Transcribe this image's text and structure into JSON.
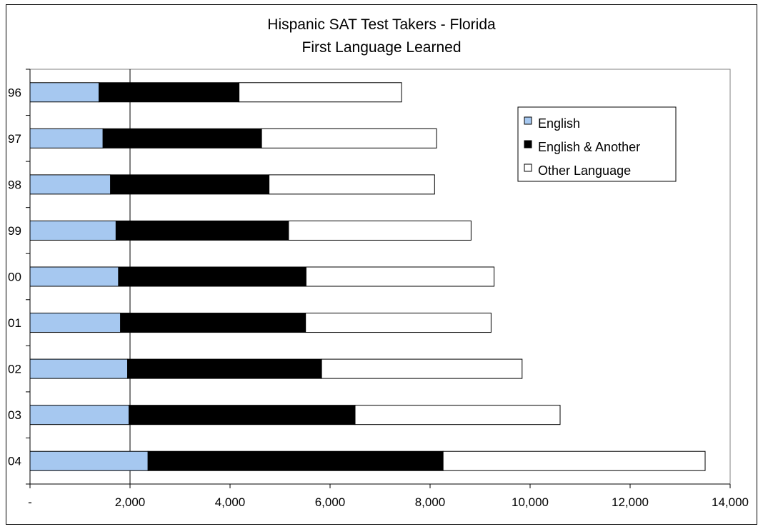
{
  "chart_data": {
    "type": "bar",
    "orientation": "horizontal",
    "stacked": true,
    "title": "Hispanic SAT Test Takers - Florida",
    "subtitle": "First Language Learned",
    "categories": [
      "96",
      "97",
      "98",
      "99",
      "00",
      "01",
      "02",
      "03",
      "04"
    ],
    "series": [
      {
        "name": "English",
        "color": "#a6c8f0",
        "values": [
          1380,
          1460,
          1610,
          1720,
          1770,
          1810,
          1950,
          1980,
          2360
        ]
      },
      {
        "name": "English & Another",
        "color": "#000000",
        "values": [
          2800,
          3170,
          3170,
          3450,
          3750,
          3700,
          3880,
          4520,
          5900
        ]
      },
      {
        "name": "Other Language",
        "color": "#ffffff",
        "values": [
          3250,
          3500,
          3310,
          3650,
          3760,
          3710,
          4010,
          4100,
          5240
        ]
      }
    ],
    "xlim": [
      0,
      14000
    ],
    "xticks": [
      0,
      2000,
      4000,
      6000,
      8000,
      10000,
      12000,
      14000
    ],
    "xtick_labels": [
      "-",
      "2,000",
      "4,000",
      "6,000",
      "8,000",
      "10,000",
      "12,000",
      "14,000"
    ],
    "reference_line_x": 2000,
    "grid": false,
    "legend_position": "top-right"
  }
}
